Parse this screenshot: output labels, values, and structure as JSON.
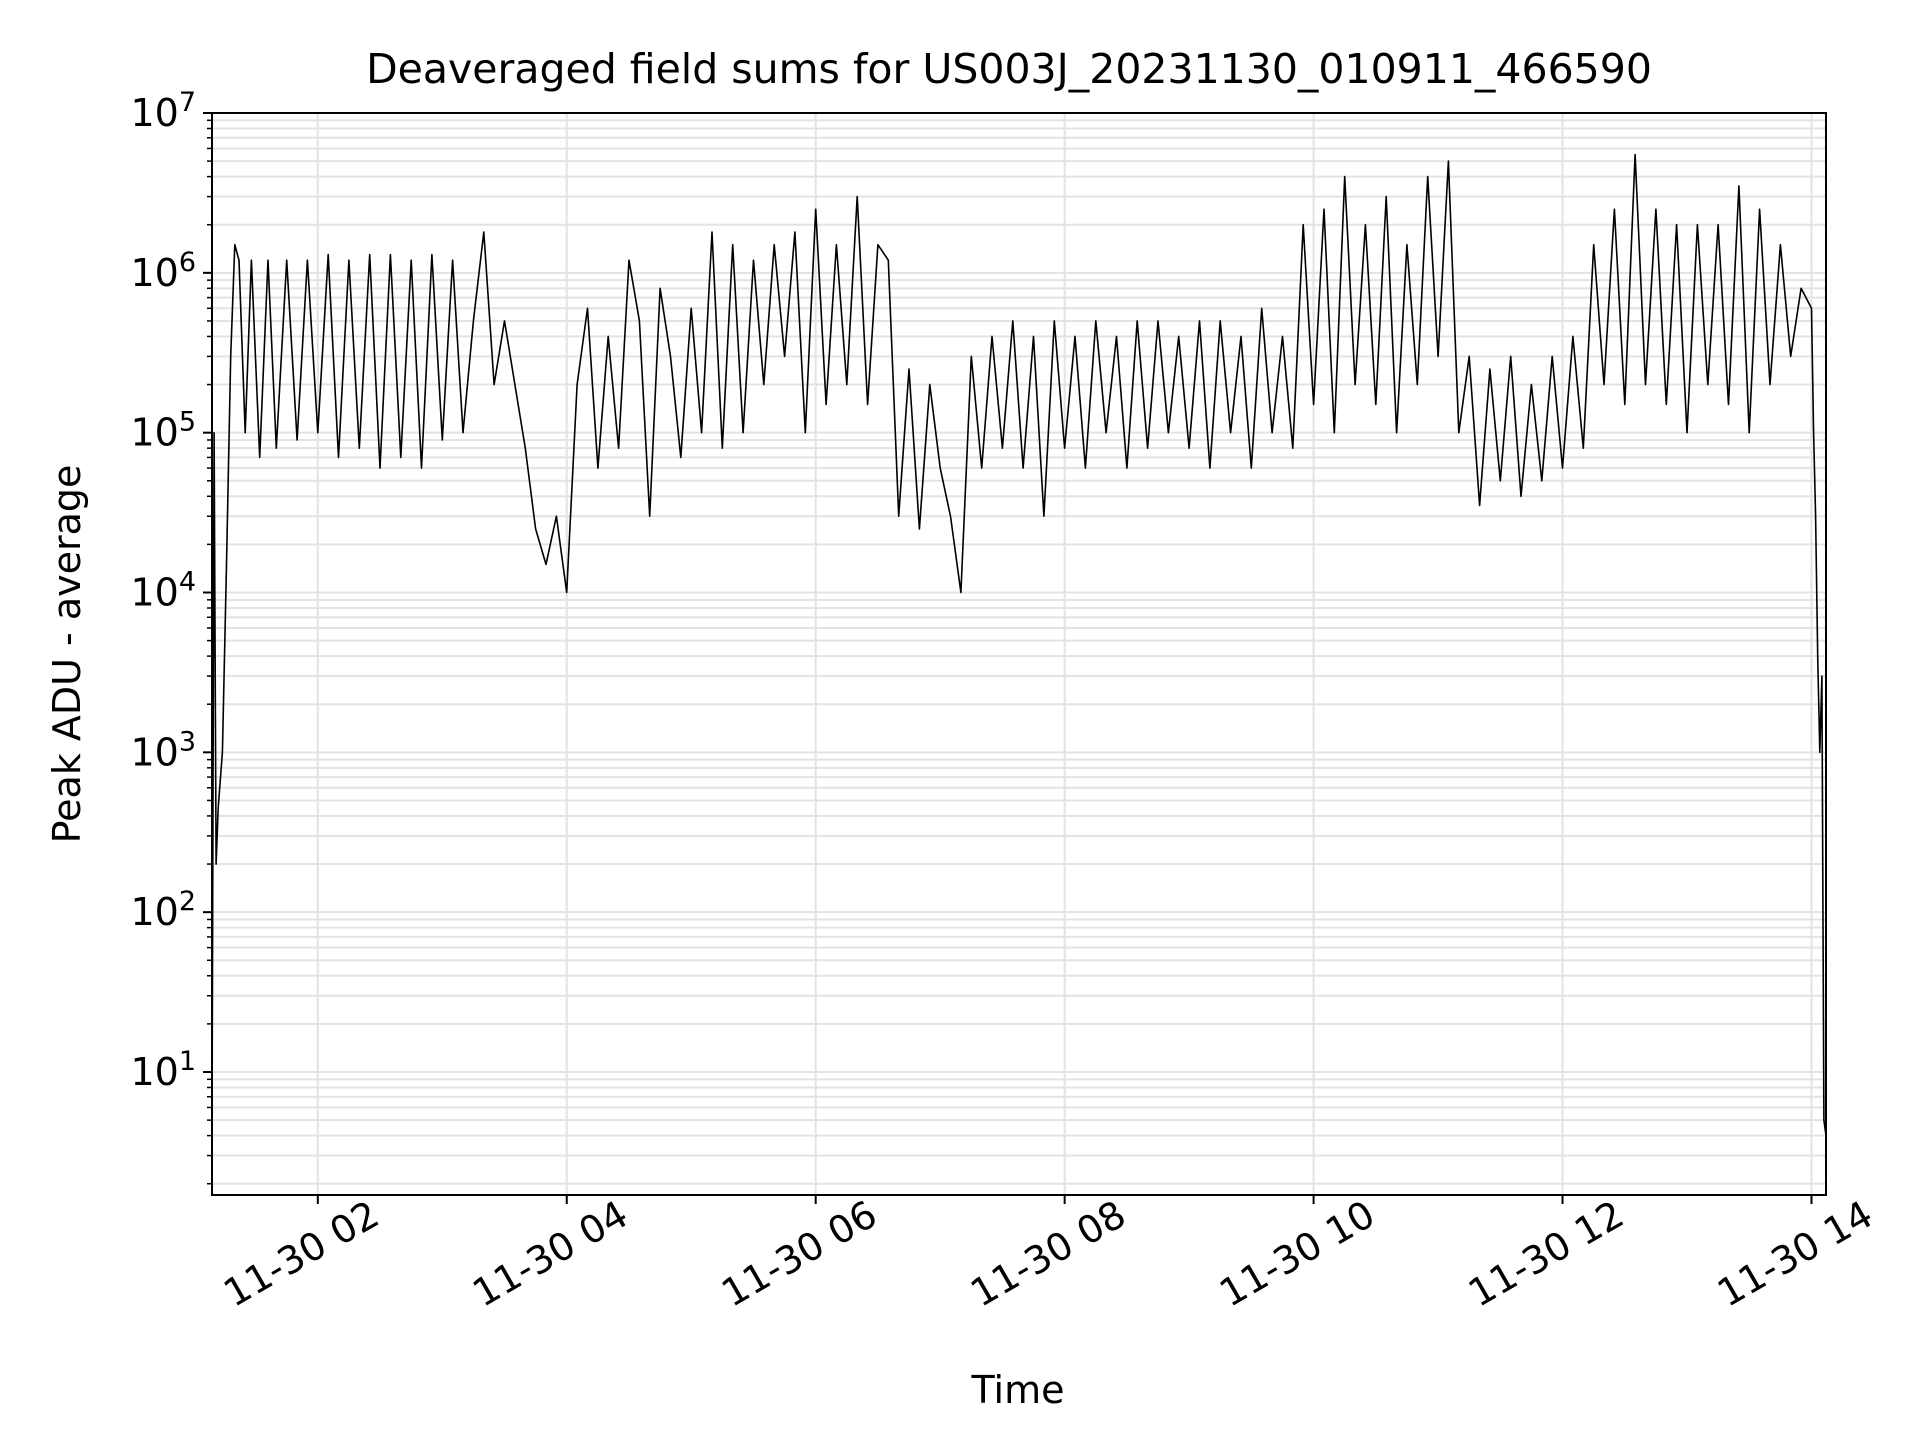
{
  "chart_data": {
    "type": "line",
    "title": "Deaveraged field sums for US003J_20231130_010911_466590",
    "xlabel": "Time",
    "ylabel": "Peak ADU - average",
    "yscale": "log",
    "xlim": [
      "2023-11-30T01:09",
      "2023-11-30T14:07"
    ],
    "ylim": [
      1.7,
      10000000
    ],
    "grid": true,
    "x_tick_labels": [
      "11-30 02",
      "11-30 04",
      "11-30 06",
      "11-30 08",
      "11-30 10",
      "11-30 12",
      "11-30 14"
    ],
    "x_tick_times": [
      "2023-11-30T02:00",
      "2023-11-30T04:00",
      "2023-11-30T06:00",
      "2023-11-30T08:00",
      "2023-11-30T10:00",
      "2023-11-30T12:00",
      "2023-11-30T14:00"
    ],
    "y_ticks": [
      {
        "value": 10,
        "base": "10",
        "exp": "1"
      },
      {
        "value": 100,
        "base": "10",
        "exp": "2"
      },
      {
        "value": 1000,
        "base": "10",
        "exp": "3"
      },
      {
        "value": 10000,
        "base": "10",
        "exp": "4"
      },
      {
        "value": 100000,
        "base": "10",
        "exp": "5"
      },
      {
        "value": 1000000,
        "base": "10",
        "exp": "6"
      },
      {
        "value": 10000000,
        "base": "10",
        "exp": "7"
      }
    ],
    "series": [
      {
        "color": "#000000",
        "x": [
          "01:09",
          "01:10",
          "01:11",
          "01:12",
          "01:14",
          "01:16",
          "01:18",
          "01:20",
          "01:22",
          "01:25",
          "01:28",
          "01:32",
          "01:36",
          "01:40",
          "01:45",
          "01:50",
          "01:55",
          "02:00",
          "02:05",
          "02:10",
          "02:15",
          "02:20",
          "02:25",
          "02:30",
          "02:35",
          "02:40",
          "02:45",
          "02:50",
          "02:55",
          "03:00",
          "03:05",
          "03:10",
          "03:15",
          "03:20",
          "03:25",
          "03:30",
          "03:35",
          "03:40",
          "03:45",
          "03:50",
          "03:55",
          "04:00",
          "04:05",
          "04:10",
          "04:15",
          "04:20",
          "04:25",
          "04:30",
          "04:35",
          "04:40",
          "04:45",
          "04:50",
          "04:55",
          "05:00",
          "05:05",
          "05:10",
          "05:15",
          "05:20",
          "05:25",
          "05:30",
          "05:35",
          "05:40",
          "05:45",
          "05:50",
          "05:55",
          "06:00",
          "06:05",
          "06:10",
          "06:15",
          "06:20",
          "06:25",
          "06:30",
          "06:35",
          "06:40",
          "06:45",
          "06:50",
          "06:55",
          "07:00",
          "07:05",
          "07:10",
          "07:15",
          "07:20",
          "07:25",
          "07:30",
          "07:35",
          "07:40",
          "07:45",
          "07:50",
          "07:55",
          "08:00",
          "08:05",
          "08:10",
          "08:15",
          "08:20",
          "08:25",
          "08:30",
          "08:35",
          "08:40",
          "08:45",
          "08:50",
          "08:55",
          "09:00",
          "09:05",
          "09:10",
          "09:15",
          "09:20",
          "09:25",
          "09:30",
          "09:35",
          "09:40",
          "09:45",
          "09:50",
          "09:55",
          "10:00",
          "10:05",
          "10:10",
          "10:15",
          "10:20",
          "10:25",
          "10:30",
          "10:35",
          "10:40",
          "10:45",
          "10:50",
          "10:55",
          "11:00",
          "11:05",
          "11:10",
          "11:15",
          "11:20",
          "11:25",
          "11:30",
          "11:35",
          "11:40",
          "11:45",
          "11:50",
          "11:55",
          "12:00",
          "12:05",
          "12:10",
          "12:15",
          "12:20",
          "12:25",
          "12:30",
          "12:35",
          "12:40",
          "12:45",
          "12:50",
          "12:55",
          "13:00",
          "13:05",
          "13:10",
          "13:15",
          "13:20",
          "13:25",
          "13:30",
          "13:35",
          "13:40",
          "13:45",
          "13:50",
          "13:55",
          "14:00",
          "14:01",
          "14:02",
          "14:03",
          "14:04",
          "14:05",
          "14:06",
          "14:07"
        ],
        "values": [
          4,
          100000,
          200,
          450,
          1000,
          15000,
          300000,
          1500000,
          1200000,
          100000,
          1200000,
          70000,
          1200000,
          80000,
          1200000,
          90000,
          1200000,
          100000,
          1300000,
          70000,
          1200000,
          80000,
          1300000,
          60000,
          1300000,
          70000,
          1200000,
          60000,
          1300000,
          90000,
          1200000,
          100000,
          500000,
          1800000,
          200000,
          500000,
          200000,
          80000,
          25000,
          15000,
          30000,
          10000,
          200000,
          600000,
          60000,
          400000,
          80000,
          1200000,
          500000,
          30000,
          800000,
          300000,
          70000,
          600000,
          100000,
          1800000,
          80000,
          1500000,
          100000,
          1200000,
          200000,
          1500000,
          300000,
          1800000,
          100000,
          2500000,
          150000,
          1500000,
          200000,
          3000000,
          150000,
          1500000,
          1200000,
          30000,
          250000,
          25000,
          200000,
          60000,
          30000,
          10000,
          300000,
          60000,
          400000,
          80000,
          500000,
          60000,
          400000,
          30000,
          500000,
          80000,
          400000,
          60000,
          500000,
          100000,
          400000,
          60000,
          500000,
          80000,
          500000,
          100000,
          400000,
          80000,
          500000,
          60000,
          500000,
          100000,
          400000,
          60000,
          600000,
          100000,
          400000,
          80000,
          2000000,
          150000,
          2500000,
          100000,
          4000000,
          200000,
          2000000,
          150000,
          3000000,
          100000,
          1500000,
          200000,
          4000000,
          300000,
          5000000,
          100000,
          300000,
          35000,
          250000,
          50000,
          300000,
          40000,
          200000,
          50000,
          300000,
          60000,
          400000,
          80000,
          1500000,
          200000,
          2500000,
          150000,
          5500000,
          200000,
          2500000,
          150000,
          2000000,
          100000,
          2000000,
          200000,
          2000000,
          150000,
          3500000,
          100000,
          2500000,
          200000,
          1500000,
          300000,
          800000,
          600000,
          100000,
          30000,
          4000,
          1000,
          3000,
          5,
          4
        ]
      }
    ]
  }
}
